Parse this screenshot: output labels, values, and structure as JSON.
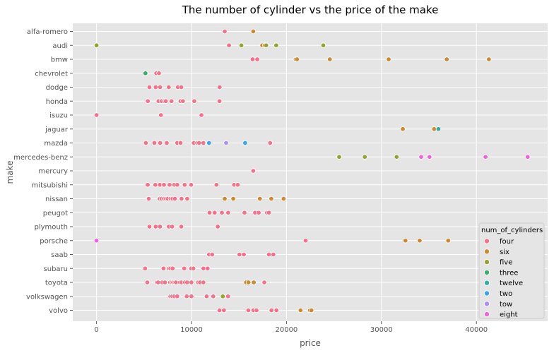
{
  "chart_data": {
    "type": "scatter",
    "title": "The number of cylinder vs the price of the make",
    "xlabel": "price",
    "ylabel": "make",
    "xlim": [
      -2500,
      47500
    ],
    "xticks": [
      0,
      10000,
      20000,
      30000,
      40000
    ],
    "xtick_labels": [
      "0",
      "10000",
      "20000",
      "30000",
      "40000"
    ],
    "grid": true,
    "legend_title": "num_of_cylinders",
    "legend_position": "lower-right",
    "categories": [
      "alfa-romero",
      "audi",
      "bmw",
      "chevrolet",
      "dodge",
      "honda",
      "isuzu",
      "jaguar",
      "mazda",
      "mercedes-benz",
      "mercury",
      "mitsubishi",
      "nissan",
      "peugot",
      "plymouth",
      "porsche",
      "saab",
      "subaru",
      "toyota",
      "volkswagen",
      "volvo"
    ],
    "series": [
      {
        "name": "four",
        "color": "#f77189",
        "points": [
          [
            "alfa-romero",
            13500
          ],
          [
            "audi",
            13950
          ],
          [
            "bmw",
            16430
          ],
          [
            "bmw",
            16925
          ],
          [
            "chevrolet",
            6295
          ],
          [
            "chevrolet",
            6575
          ],
          [
            "dodge",
            5572
          ],
          [
            "dodge",
            6229
          ],
          [
            "dodge",
            6692
          ],
          [
            "dodge",
            7609
          ],
          [
            "dodge",
            8558
          ],
          [
            "dodge",
            8921
          ],
          [
            "dodge",
            12964
          ],
          [
            "honda",
            5399
          ],
          [
            "honda",
            6529
          ],
          [
            "honda",
            6855
          ],
          [
            "honda",
            7129
          ],
          [
            "honda",
            7295
          ],
          [
            "honda",
            7895
          ],
          [
            "honda",
            8845
          ],
          [
            "honda",
            9095
          ],
          [
            "honda",
            10295
          ],
          [
            "honda",
            12945
          ],
          [
            "isuzu",
            0
          ],
          [
            "isuzu",
            6785
          ],
          [
            "isuzu",
            11048
          ],
          [
            "mazda",
            5195
          ],
          [
            "mazda",
            6095
          ],
          [
            "mazda",
            6695
          ],
          [
            "mazda",
            7395
          ],
          [
            "mazda",
            8495
          ],
          [
            "mazda",
            8845
          ],
          [
            "mazda",
            10245
          ],
          [
            "mazda",
            10595
          ],
          [
            "mazda",
            10795
          ],
          [
            "mazda",
            11245
          ],
          [
            "mazda",
            18280
          ],
          [
            "mercury",
            16503
          ],
          [
            "mitsubishi",
            5389
          ],
          [
            "mitsubishi",
            6189
          ],
          [
            "mitsubishi",
            6669
          ],
          [
            "mitsubishi",
            7099
          ],
          [
            "mitsubishi",
            7689
          ],
          [
            "mitsubishi",
            8189
          ],
          [
            "mitsubishi",
            8499
          ],
          [
            "mitsubishi",
            9279
          ],
          [
            "mitsubishi",
            9959
          ],
          [
            "mitsubishi",
            12629
          ],
          [
            "mitsubishi",
            14489
          ],
          [
            "mitsubishi",
            14869
          ],
          [
            "nissan",
            5499
          ],
          [
            "nissan",
            6649
          ],
          [
            "nissan",
            6849
          ],
          [
            "nissan",
            7099
          ],
          [
            "nissan",
            7299
          ],
          [
            "nissan",
            7499
          ],
          [
            "nissan",
            7799
          ],
          [
            "nissan",
            7999
          ],
          [
            "nissan",
            8249
          ],
          [
            "nissan",
            8949
          ],
          [
            "nissan",
            9549
          ],
          [
            "peugot",
            11900
          ],
          [
            "peugot",
            12440
          ],
          [
            "peugot",
            13200
          ],
          [
            "peugot",
            13860
          ],
          [
            "peugot",
            15580
          ],
          [
            "peugot",
            16695
          ],
          [
            "peugot",
            17075
          ],
          [
            "peugot",
            17950
          ],
          [
            "peugot",
            18150
          ],
          [
            "plymouth",
            5572
          ],
          [
            "plymouth",
            6229
          ],
          [
            "plymouth",
            6692
          ],
          [
            "plymouth",
            7609
          ],
          [
            "plymouth",
            7957
          ],
          [
            "plymouth",
            8921
          ],
          [
            "plymouth",
            12764
          ],
          [
            "porsche",
            22018
          ],
          [
            "saab",
            11850
          ],
          [
            "saab",
            12170
          ],
          [
            "saab",
            15040
          ],
          [
            "saab",
            15510
          ],
          [
            "saab",
            18150
          ],
          [
            "saab",
            18620
          ],
          [
            "subaru",
            5118
          ],
          [
            "subaru",
            7053
          ],
          [
            "subaru",
            7603
          ],
          [
            "subaru",
            7775
          ],
          [
            "subaru",
            8013
          ],
          [
            "subaru",
            9233
          ],
          [
            "subaru",
            9960
          ],
          [
            "subaru",
            10198
          ],
          [
            "subaru",
            11259
          ],
          [
            "subaru",
            11694
          ],
          [
            "toyota",
            5348
          ],
          [
            "toyota",
            6338
          ],
          [
            "toyota",
            6488
          ],
          [
            "toyota",
            6918
          ],
          [
            "toyota",
            7198
          ],
          [
            "toyota",
            7738
          ],
          [
            "toyota",
            7898
          ],
          [
            "toyota",
            8058
          ],
          [
            "toyota",
            8238
          ],
          [
            "toyota",
            8358
          ],
          [
            "toyota",
            8778
          ],
          [
            "toyota",
            8948
          ],
          [
            "toyota",
            9298
          ],
          [
            "toyota",
            9538
          ],
          [
            "toyota",
            9988
          ],
          [
            "toyota",
            10698
          ],
          [
            "toyota",
            10898
          ],
          [
            "toyota",
            11248
          ],
          [
            "toyota",
            17669
          ],
          [
            "volkswagen",
            7775
          ],
          [
            "volkswagen",
            7975
          ],
          [
            "volkswagen",
            8195
          ],
          [
            "volkswagen",
            8495
          ],
          [
            "volkswagen",
            9495
          ],
          [
            "volkswagen",
            9995
          ],
          [
            "volkswagen",
            11595
          ],
          [
            "volkswagen",
            12290
          ],
          [
            "volkswagen",
            13845
          ],
          [
            "volvo",
            12940
          ],
          [
            "volvo",
            13415
          ],
          [
            "volvo",
            15985
          ],
          [
            "volvo",
            16515
          ],
          [
            "volvo",
            16845
          ],
          [
            "volvo",
            18420
          ],
          [
            "volvo",
            18950
          ]
        ]
      },
      {
        "name": "six",
        "color": "#cc8a31",
        "points": [
          [
            "alfa-romero",
            16500
          ],
          [
            "audi",
            17450
          ],
          [
            "audi",
            17710
          ],
          [
            "bmw",
            20970
          ],
          [
            "bmw",
            21105
          ],
          [
            "bmw",
            24565
          ],
          [
            "bmw",
            30760
          ],
          [
            "bmw",
            36880
          ],
          [
            "bmw",
            41315
          ],
          [
            "jaguar",
            32250
          ],
          [
            "jaguar",
            35550
          ],
          [
            "nissan",
            13499
          ],
          [
            "nissan",
            14399
          ],
          [
            "nissan",
            17199
          ],
          [
            "nissan",
            18399
          ],
          [
            "nissan",
            19699
          ],
          [
            "porsche",
            32528
          ],
          [
            "porsche",
            34028
          ],
          [
            "porsche",
            37028
          ],
          [
            "toyota",
            15750
          ],
          [
            "toyota",
            15998
          ],
          [
            "toyota",
            16558
          ],
          [
            "volvo",
            21485
          ],
          [
            "volvo",
            22470
          ],
          [
            "volvo",
            22625
          ]
        ]
      },
      {
        "name": "five",
        "color": "#96a331",
        "points": [
          [
            "audi",
            0
          ],
          [
            "audi",
            15250
          ],
          [
            "audi",
            17859
          ],
          [
            "audi",
            18920
          ],
          [
            "audi",
            23875
          ],
          [
            "mercedes-benz",
            25552
          ],
          [
            "mercedes-benz",
            28248
          ],
          [
            "mercedes-benz",
            31600
          ],
          [
            "volkswagen",
            13295
          ]
        ]
      },
      {
        "name": "three",
        "color": "#33b06c",
        "points": [
          [
            "chevrolet",
            5151
          ]
        ]
      },
      {
        "name": "twelve",
        "color": "#36ada4",
        "points": [
          [
            "jaguar",
            36000
          ]
        ]
      },
      {
        "name": "two",
        "color": "#3ba3ec",
        "points": [
          [
            "mazda",
            11845
          ],
          [
            "mazda",
            15645
          ]
        ]
      },
      {
        "name": "tow",
        "color": "#ae8ff1",
        "points": [
          [
            "mazda",
            13645
          ]
        ]
      },
      {
        "name": "eight",
        "color": "#f561dd",
        "points": [
          [
            "mercedes-benz",
            34184
          ],
          [
            "mercedes-benz",
            35056
          ],
          [
            "mercedes-benz",
            40960
          ],
          [
            "mercedes-benz",
            45400
          ],
          [
            "porsche",
            0
          ]
        ]
      }
    ]
  }
}
